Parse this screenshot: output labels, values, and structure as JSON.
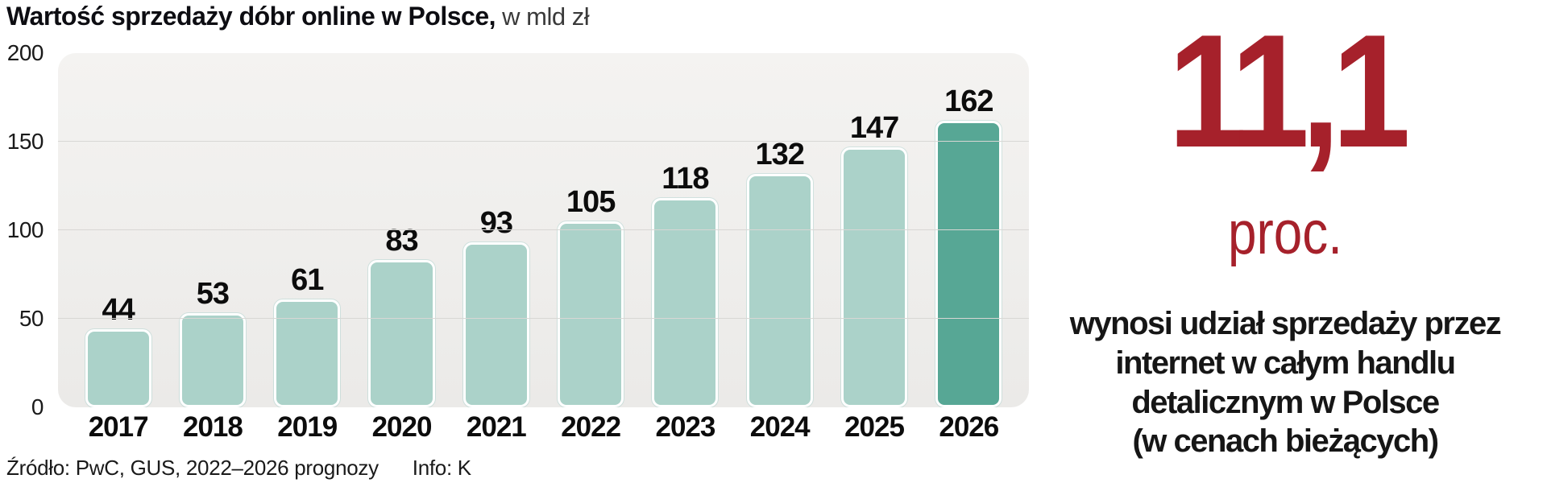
{
  "header": {
    "title_bold": "Wartość sprzedaży dóbr online w Polsce,",
    "title_unit": " w mld zł"
  },
  "chart_data": {
    "type": "bar",
    "title": "Wartość sprzedaży dóbr online w Polsce, w mld zł",
    "categories": [
      "2017",
      "2018",
      "2019",
      "2020",
      "2021",
      "2022",
      "2023",
      "2024",
      "2025",
      "2026"
    ],
    "values": [
      44,
      53,
      61,
      83,
      93,
      105,
      118,
      132,
      147,
      162
    ],
    "xlabel": "",
    "ylabel": "w mld zł",
    "ylim": [
      0,
      200
    ],
    "yticks": [
      0,
      50,
      100,
      150,
      200
    ],
    "grid": true,
    "legend": "none",
    "value_labels": "above bars",
    "highlight_category": "2026",
    "bar_color": "#abd2c9",
    "highlight_color": "#57a795",
    "plot_background": "#f0efed"
  },
  "source": {
    "text": "Źródło: PwC, GUS, 2022–2026 prognozy",
    "credit": "Info: K"
  },
  "callout": {
    "value": "11,1",
    "unit": "proc.",
    "description": "wynosi udział sprzedaży przez\ninternet w całym handlu\ndetalicznym w Polsce\n(w cenach bieżących)",
    "accent_color": "#a6212b"
  }
}
